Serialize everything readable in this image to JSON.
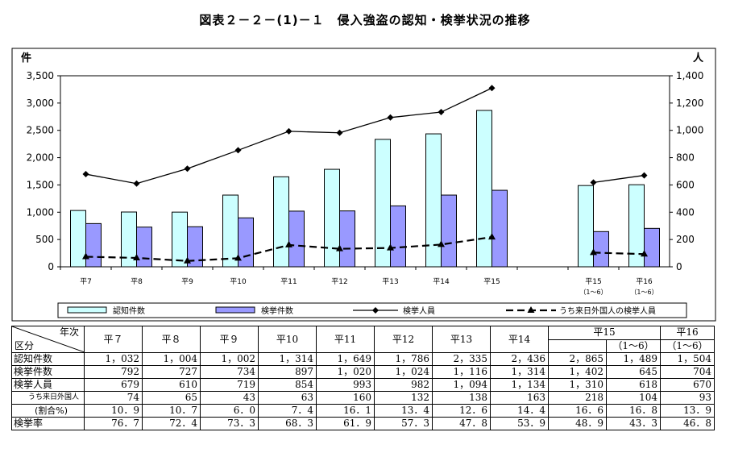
{
  "title": "図表２－２－(1)－１　侵入強盗の認知・検挙状況の推移",
  "colors": {
    "recognized": "#ccffff",
    "cleared": "#9999ff",
    "line": "#000000"
  },
  "chart_data": {
    "type": "bar",
    "title": "図表２－２－(1)－１　侵入強盗の認知・検挙状況の推移",
    "ylabel_left": "件",
    "ylabel_right": "人",
    "ylim_left": [
      0,
      3500
    ],
    "ylim_right": [
      0,
      1400
    ],
    "yticks_left": [
      "0",
      "500",
      "1,000",
      "1,500",
      "2,000",
      "2,500",
      "3,000",
      "3,500"
    ],
    "yticks_right": [
      "0",
      "200",
      "400",
      "600",
      "800",
      "1,000",
      "1,200",
      "1,400"
    ],
    "categories": [
      {
        "label": "平7",
        "sub": ""
      },
      {
        "label": "平8",
        "sub": ""
      },
      {
        "label": "平9",
        "sub": ""
      },
      {
        "label": "平10",
        "sub": ""
      },
      {
        "label": "平11",
        "sub": ""
      },
      {
        "label": "平12",
        "sub": ""
      },
      {
        "label": "平13",
        "sub": ""
      },
      {
        "label": "平14",
        "sub": ""
      },
      {
        "label": "平15",
        "sub": ""
      },
      {
        "label": "",
        "sub": ""
      },
      {
        "label": "平15",
        "sub": "（1～6）"
      },
      {
        "label": "平16",
        "sub": "（1～6）"
      }
    ],
    "series": [
      {
        "name": "認知件数",
        "kind": "bar",
        "axis": "left",
        "values": [
          1032,
          1004,
          1002,
          1314,
          1649,
          1786,
          2335,
          2436,
          2865,
          null,
          1489,
          1504
        ]
      },
      {
        "name": "検挙件数",
        "kind": "bar",
        "axis": "left",
        "values": [
          792,
          727,
          734,
          897,
          1020,
          1024,
          1116,
          1314,
          1402,
          null,
          645,
          704
        ]
      },
      {
        "name": "検挙人員",
        "kind": "line",
        "axis": "right",
        "marker": "diamond",
        "values": [
          679,
          610,
          719,
          854,
          993,
          982,
          1094,
          1134,
          1310,
          null,
          618,
          670
        ]
      },
      {
        "name": "うち来日外国人の検挙人員",
        "kind": "dashed-line",
        "axis": "right",
        "marker": "triangle",
        "values": [
          74,
          65,
          43,
          63,
          160,
          132,
          138,
          163,
          218,
          null,
          104,
          93
        ]
      }
    ],
    "legend_position": "bottom"
  },
  "table": {
    "corner_top": "年次",
    "corner_bottom": "区分",
    "headers": [
      "平７",
      "平８",
      "平９",
      "平10",
      "平11",
      "平12",
      "平13",
      "平14"
    ],
    "header_h15": "平15",
    "header_h15_sub": "（1～6）",
    "header_h16": "平16",
    "header_h16_sub": "（1～6）",
    "rows": [
      {
        "label": "認知件数",
        "values": [
          "1，032",
          "1，004",
          "1，002",
          "1，314",
          "1，649",
          "1，786",
          "2，335",
          "2，436",
          "2，865",
          "1，489",
          "1，504"
        ]
      },
      {
        "label": "検挙件数",
        "values": [
          "792",
          "727",
          "734",
          "897",
          "1，020",
          "1，024",
          "1，116",
          "1，314",
          "1，402",
          "645",
          "704"
        ]
      },
      {
        "label": "検挙人員",
        "values": [
          "679",
          "610",
          "719",
          "854",
          "993",
          "982",
          "1，094",
          "1，134",
          "1，310",
          "618",
          "670"
        ]
      },
      {
        "label": "うち来日外国人",
        "values": [
          "74",
          "65",
          "43",
          "63",
          "160",
          "132",
          "138",
          "163",
          "218",
          "104",
          "93"
        ]
      },
      {
        "label": "(割合%)",
        "values": [
          "10．9",
          "10．7",
          "6．0",
          "7．4",
          "16．1",
          "13．4",
          "12．6",
          "14．4",
          "16．6",
          "16．8",
          "13．9"
        ]
      },
      {
        "label": "検挙率",
        "values": [
          "76．7",
          "72．4",
          "73．3",
          "68．3",
          "61．9",
          "57．3",
          "47．8",
          "53．9",
          "48．9",
          "43．3",
          "46．8"
        ]
      }
    ]
  }
}
